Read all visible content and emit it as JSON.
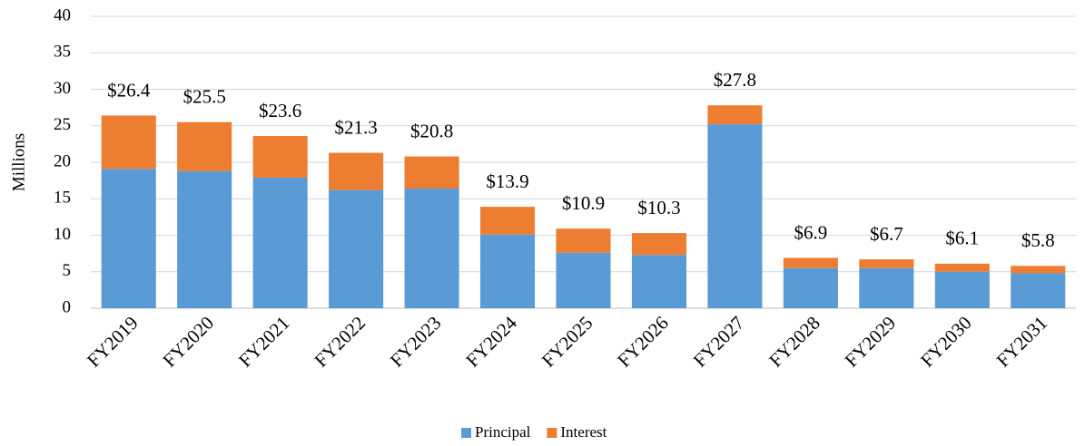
{
  "chart_data": {
    "type": "stacked_bar",
    "y_label": "Millions",
    "categories": [
      "FY2019",
      "FY2020",
      "FY2021",
      "FY2022",
      "FY2023",
      "FY2024",
      "FY2025",
      "FY2026",
      "FY2027",
      "FY2028",
      "FY2029",
      "FY2030",
      "FY2031"
    ],
    "series": [
      {
        "name": "Principal",
        "color": "#5b9bd5",
        "values": [
          19.1,
          18.8,
          17.9,
          16.2,
          16.4,
          10.1,
          7.6,
          7.3,
          25.2,
          5.5,
          5.5,
          5.0,
          4.8
        ]
      },
      {
        "name": "Interest",
        "color": "#ed7d31",
        "values": [
          7.3,
          6.7,
          5.7,
          5.1,
          4.4,
          3.8,
          3.3,
          3.0,
          2.6,
          1.4,
          1.2,
          1.1,
          1.0
        ]
      }
    ],
    "total_labels": [
      "$26.4",
      "$25.5",
      "$23.6",
      "$21.3",
      "$20.8",
      "$13.9",
      "$10.9",
      "$10.3",
      "$27.8",
      "$6.9",
      "$6.7",
      "$6.1",
      "$5.8"
    ],
    "ylim": [
      0,
      40
    ],
    "yticks": [
      0,
      5,
      10,
      15,
      20,
      25,
      30,
      35,
      40
    ],
    "grid": true,
    "legend": "bottom"
  }
}
